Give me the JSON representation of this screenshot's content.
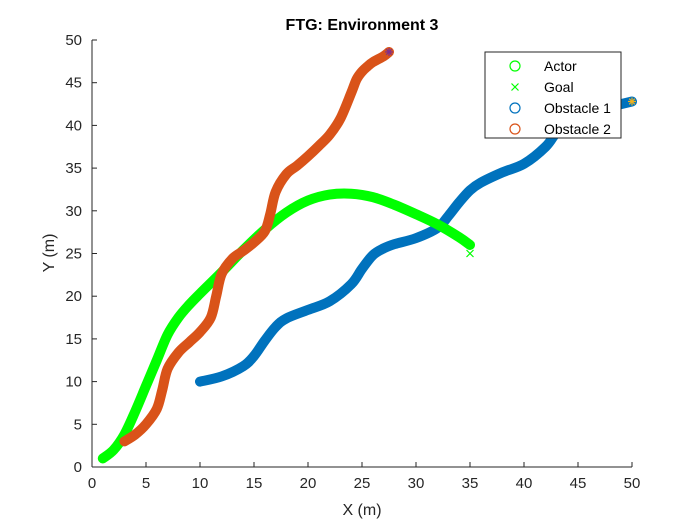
{
  "chart_data": {
    "type": "line",
    "title": "FTG: Environment 3",
    "xlabel": "X (m)",
    "ylabel": "Y (m)",
    "xlim": [
      0,
      50
    ],
    "ylim": [
      0,
      50
    ],
    "xticks": [
      "0",
      "5",
      "10",
      "15",
      "20",
      "25",
      "30",
      "35",
      "40",
      "45",
      "50"
    ],
    "yticks": [
      "0",
      "5",
      "10",
      "15",
      "20",
      "25",
      "30",
      "35",
      "40",
      "45",
      "50"
    ],
    "grid": false,
    "legend_position": "top-right",
    "colors": {
      "actor": "#00ff00",
      "goal": "#00ff00",
      "obstacle1": "#0072bd",
      "obstacle2": "#d95319",
      "axis": "#262626"
    },
    "series": [
      {
        "name": "Actor",
        "marker": "circle",
        "x": [
          1,
          2,
          3,
          4,
          5,
          6,
          7,
          8,
          9,
          10,
          12,
          14,
          16,
          18,
          20,
          22,
          24,
          26,
          28,
          30,
          32,
          34,
          35
        ],
        "y": [
          1,
          2,
          3.8,
          6.5,
          9.5,
          12.5,
          15.5,
          17.5,
          19,
          20.3,
          22.8,
          25.4,
          27.8,
          29.8,
          31.2,
          31.9,
          32,
          31.6,
          30.7,
          29.6,
          28.4,
          26.9,
          26
        ]
      },
      {
        "name": "Goal",
        "marker": "x",
        "x": [
          35
        ],
        "y": [
          25
        ]
      },
      {
        "name": "Obstacle 1",
        "marker": "circle",
        "x": [
          10,
          12,
          14,
          15,
          16,
          17,
          18,
          20,
          22,
          24,
          25,
          26,
          27,
          28,
          30,
          32,
          33,
          34,
          35,
          36,
          38,
          40,
          42,
          43,
          44,
          46,
          48,
          50
        ],
        "y": [
          10,
          10.6,
          11.8,
          13,
          14.8,
          16.4,
          17.4,
          18.4,
          19.4,
          21.4,
          23.2,
          24.8,
          25.6,
          26.1,
          26.8,
          28,
          29.4,
          31,
          32.4,
          33.3,
          34.5,
          35.5,
          37.5,
          39.2,
          40.5,
          41.6,
          42.2,
          42.8
        ]
      },
      {
        "name": "Obstacle 2",
        "marker": "circle",
        "x": [
          3,
          4,
          5,
          6,
          6.5,
          7,
          8,
          9,
          10,
          11,
          11.5,
          12,
          13,
          14,
          15,
          16,
          16.5,
          17,
          18,
          19,
          20,
          21,
          22,
          23,
          24,
          24.5,
          25,
          25.5,
          26,
          27,
          27.5
        ],
        "y": [
          3,
          3.8,
          5,
          6.8,
          9,
          11.5,
          13.4,
          14.6,
          15.8,
          17.5,
          20,
          22.6,
          24.4,
          25.3,
          26.3,
          27.6,
          29.6,
          32.2,
          34.3,
          35.3,
          36.4,
          37.6,
          38.9,
          40.8,
          43.8,
          45.4,
          46.3,
          46.9,
          47.4,
          48.1,
          48.6
        ]
      }
    ],
    "endpoint_markers": [
      {
        "name": "obstacle-2-end-marker",
        "marker": "asterisk",
        "x": 27.5,
        "y": 48.6,
        "color": "#7e2f8e"
      },
      {
        "name": "obstacle-1-end-marker",
        "marker": "asterisk",
        "x": 50,
        "y": 42.8,
        "color": "#edb120"
      }
    ]
  }
}
